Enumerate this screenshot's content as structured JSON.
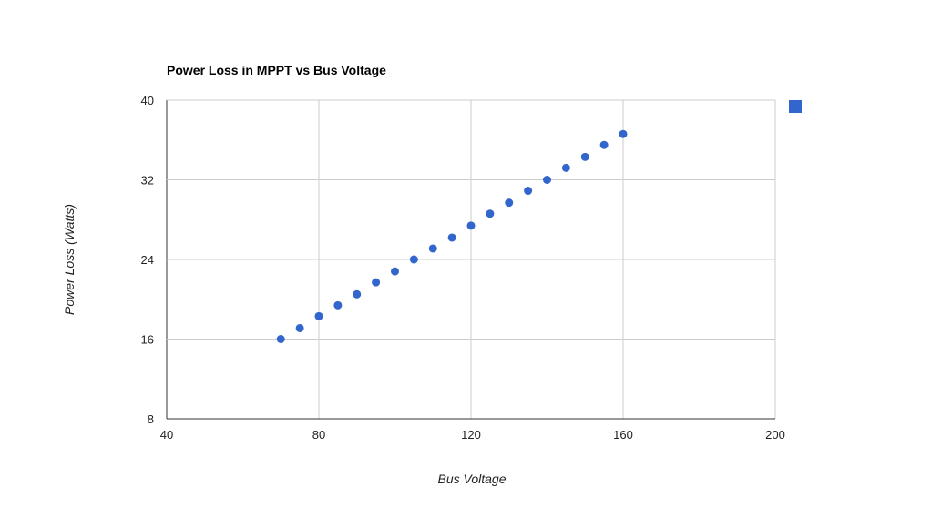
{
  "chart_data": {
    "type": "scatter",
    "title": "Power Loss in MPPT vs Bus Voltage",
    "xlabel": "Bus Voltage",
    "ylabel": "Power Loss (Watts)",
    "xlim": [
      40,
      200
    ],
    "ylim": [
      8,
      40
    ],
    "x_ticks": [
      "40",
      "80",
      "120",
      "160",
      "200"
    ],
    "y_ticks": [
      "8",
      "16",
      "24",
      "32",
      "40"
    ],
    "grid": true,
    "legend": "right",
    "series": [
      {
        "color": "#3366cc",
        "x": [
          70,
          75,
          80,
          85,
          90,
          95,
          100,
          105,
          110,
          115,
          120,
          125,
          130,
          135,
          140,
          145,
          150,
          155,
          160
        ],
        "y": [
          16.0,
          17.1,
          18.3,
          19.4,
          20.5,
          21.7,
          22.8,
          24.0,
          25.1,
          26.2,
          27.4,
          28.6,
          29.7,
          30.9,
          32.0,
          33.2,
          34.3,
          35.5,
          36.6
        ]
      }
    ]
  }
}
